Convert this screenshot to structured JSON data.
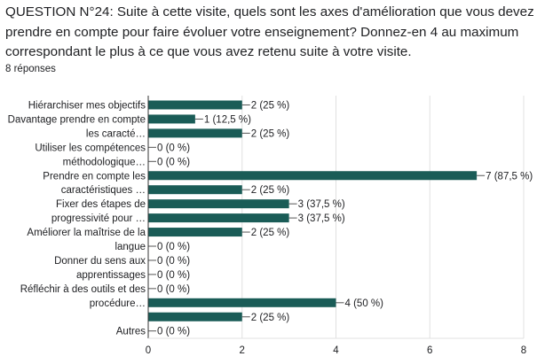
{
  "question": "QUESTION N°24: Suite à cette visite, quels sont les axes d'amélioration que vous devez prendre en compte pour faire évoluer votre enseignement? Donnez-en 4 au maximum correspondant le plus à ce que vous avez retenu suite à votre visite.",
  "responses_count": "8 réponses",
  "colors": {
    "bar": "#1a5c57",
    "axis": "#333333",
    "grid": "#e0e0e0"
  },
  "chart_data": {
    "type": "bar",
    "orientation": "horizontal",
    "categories": [
      [
        "Hiérarchiser mes objectifs"
      ],
      [
        "Davantage prendre en compte"
      ],
      [
        "les caracté…"
      ],
      [
        "Utiliser les compétences"
      ],
      [
        "méthodologique…"
      ],
      [
        "Prendre en compte les"
      ],
      [
        "caractéristiques …"
      ],
      [
        "Fixer des étapes de"
      ],
      [
        "progressivité pour …"
      ],
      [
        "Améliorer la maîtrise de la"
      ],
      [
        "langue"
      ],
      [
        "Donner du sens aux"
      ],
      [
        "apprentissages"
      ],
      [
        "Réfléchir à des outils et des"
      ],
      [
        "procédure…"
      ],
      [
        ""
      ],
      [
        "Autres"
      ]
    ],
    "values": [
      2,
      1,
      2,
      0,
      0,
      7,
      2,
      3,
      3,
      2,
      0,
      0,
      0,
      0,
      4,
      2,
      0
    ],
    "data_labels": [
      "2 (25 %)",
      "1 (12,5 %)",
      "2 (25 %)",
      "0 (0 %)",
      "0 (0 %)",
      "7 (87,5 %)",
      "2 (25 %)",
      "3 (37,5 %)",
      "3 (37,5 %)",
      "2 (25 %)",
      "0 (0 %)",
      "0 (0 %)",
      "0 (0 %)",
      "0 (0 %)",
      "4 (50 %)",
      "2 (25 %)",
      "0 (0 %)"
    ],
    "xlim": [
      0,
      8
    ],
    "xticks": [
      "0",
      "2",
      "4",
      "6",
      "8"
    ],
    "grid": true
  }
}
